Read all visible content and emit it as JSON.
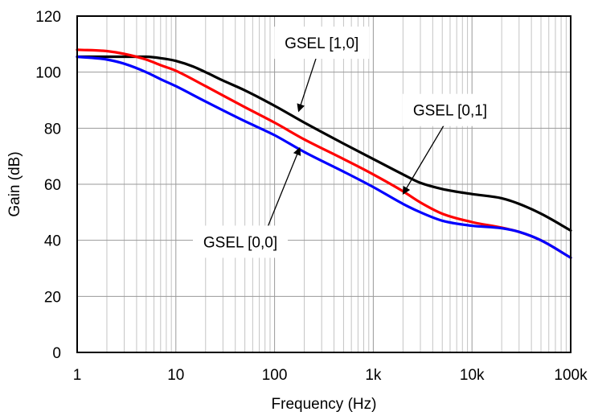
{
  "chart_data": {
    "type": "line",
    "title": "",
    "xlabel": "Frequency (Hz)",
    "ylabel": "Gain (dB)",
    "xscale": "log",
    "xlim": [
      1,
      100000
    ],
    "ylim": [
      0,
      120
    ],
    "grid": true,
    "x_ticks": [
      {
        "value": 1,
        "label": "1"
      },
      {
        "value": 10,
        "label": "10"
      },
      {
        "value": 100,
        "label": "100"
      },
      {
        "value": 1000,
        "label": "1k"
      },
      {
        "value": 10000,
        "label": "10k"
      },
      {
        "value": 100000,
        "label": "100k"
      }
    ],
    "y_ticks": [
      {
        "value": 0,
        "label": "0"
      },
      {
        "value": 20,
        "label": "20"
      },
      {
        "value": 40,
        "label": "40"
      },
      {
        "value": 60,
        "label": "60"
      },
      {
        "value": 80,
        "label": "80"
      },
      {
        "value": 100,
        "label": "100"
      },
      {
        "value": 120,
        "label": "120"
      }
    ],
    "series": [
      {
        "name": "GSEL [1,0]",
        "color": "#000000",
        "points": [
          [
            1,
            105.5
          ],
          [
            2,
            105.5
          ],
          [
            3,
            105.5
          ],
          [
            5,
            105.5
          ],
          [
            7,
            105
          ],
          [
            10,
            104
          ],
          [
            15,
            102
          ],
          [
            20,
            100
          ],
          [
            30,
            97
          ],
          [
            50,
            93.5
          ],
          [
            100,
            88
          ],
          [
            200,
            82
          ],
          [
            500,
            74.5
          ],
          [
            1000,
            69
          ],
          [
            2000,
            63.5
          ],
          [
            3000,
            60.5
          ],
          [
            5000,
            58.3
          ],
          [
            10000,
            56.5
          ],
          [
            20000,
            55
          ],
          [
            30000,
            53
          ],
          [
            50000,
            49.5
          ],
          [
            100000,
            43.5
          ]
        ]
      },
      {
        "name": "GSEL [0,1]",
        "color": "#ff0000",
        "points": [
          [
            1,
            108
          ],
          [
            2,
            107.5
          ],
          [
            3,
            106.5
          ],
          [
            5,
            104.5
          ],
          [
            7,
            102.5
          ],
          [
            10,
            100.5
          ],
          [
            20,
            95
          ],
          [
            50,
            87.5
          ],
          [
            100,
            82
          ],
          [
            200,
            76
          ],
          [
            500,
            69
          ],
          [
            1000,
            63.5
          ],
          [
            2000,
            57.5
          ],
          [
            3000,
            53.5
          ],
          [
            5000,
            49.5
          ],
          [
            10000,
            46.5
          ],
          [
            20000,
            44.5
          ],
          [
            30000,
            43
          ],
          [
            50000,
            40
          ],
          [
            100000,
            33.8
          ]
        ]
      },
      {
        "name": "GSEL [0,0]",
        "color": "#0000ff",
        "points": [
          [
            1,
            105.5
          ],
          [
            2,
            104.5
          ],
          [
            3,
            103
          ],
          [
            5,
            100
          ],
          [
            7,
            97.5
          ],
          [
            10,
            95
          ],
          [
            20,
            89.5
          ],
          [
            50,
            82.5
          ],
          [
            100,
            77.5
          ],
          [
            200,
            71.5
          ],
          [
            500,
            64.5
          ],
          [
            1000,
            59
          ],
          [
            2000,
            53
          ],
          [
            3000,
            50
          ],
          [
            5000,
            47
          ],
          [
            10000,
            45.2
          ],
          [
            20000,
            44.3
          ],
          [
            30000,
            43
          ],
          [
            50000,
            40
          ],
          [
            100000,
            33.8
          ]
        ]
      }
    ],
    "annotations": [
      {
        "text": "GSEL [1,0]",
        "series": "GSEL [1,0]",
        "label_at": [
          300,
          110.5
        ],
        "arrow_to": [
          175,
          86
        ]
      },
      {
        "text": "GSEL [0,1]",
        "series": "GSEL [0,1]",
        "label_at": [
          6000,
          86.5
        ],
        "arrow_to": [
          2000,
          56.5
        ]
      },
      {
        "text": "GSEL [0,0]",
        "series": "GSEL [0,0]",
        "label_at": [
          45,
          39.5
        ],
        "arrow_to": [
          180,
          73
        ]
      }
    ]
  }
}
